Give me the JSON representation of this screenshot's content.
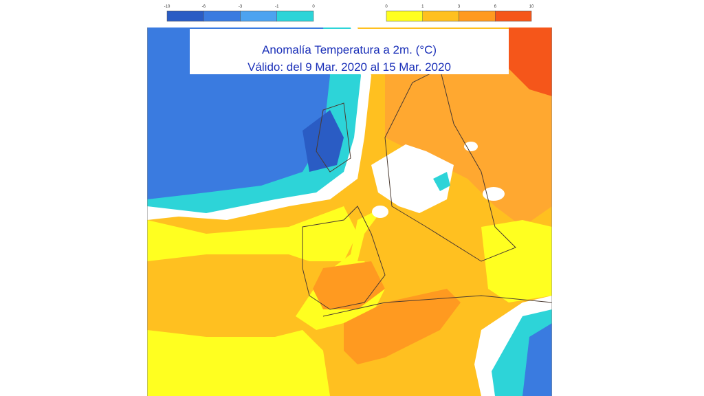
{
  "header": {
    "legend_left": {
      "ticks": [
        -10,
        -6,
        -3,
        -1,
        0
      ]
    },
    "legend_right": {
      "ticks": [
        0,
        1,
        3,
        6,
        10
      ]
    }
  },
  "map": {
    "title": {
      "line1": "Anomalía Temperatura a 2m. (°C)",
      "line2": "Válido: del 9 Mar. 2020 al 15 Mar. 2020"
    }
  }
}
